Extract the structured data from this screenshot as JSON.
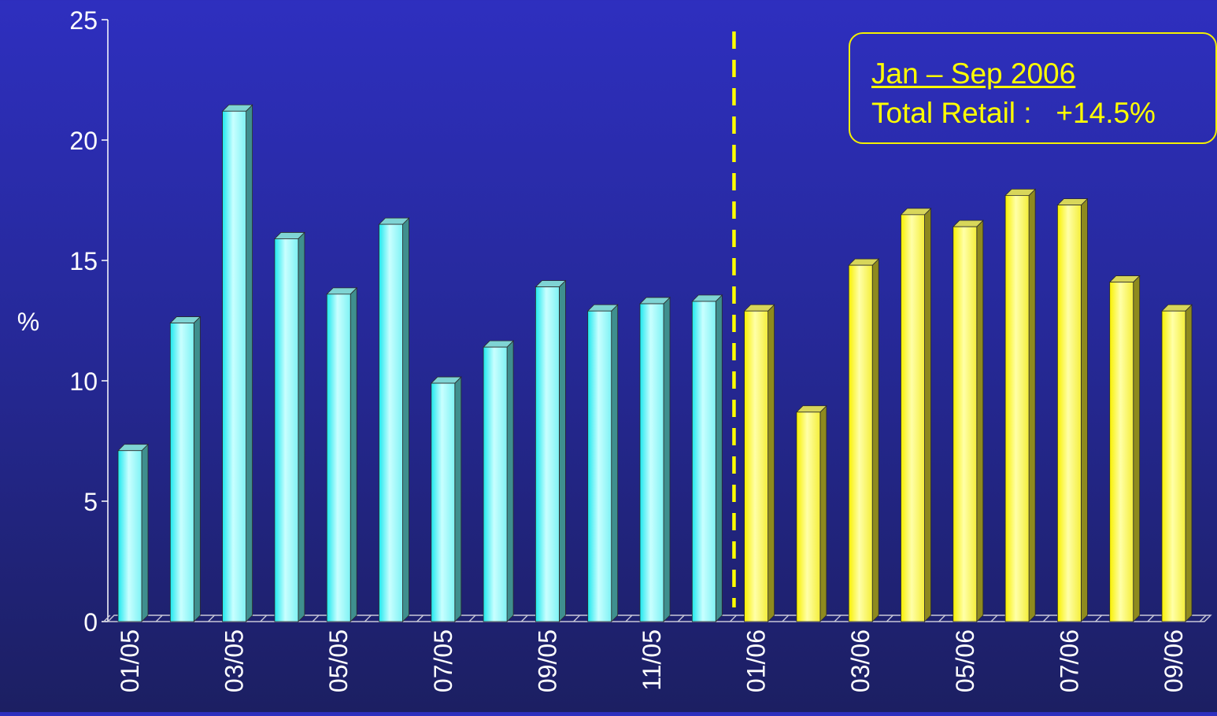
{
  "chart_data": {
    "type": "bar",
    "ylabel": "%",
    "ylim": [
      0,
      25
    ],
    "yticks": [
      "0",
      "5",
      "10",
      "15",
      "20",
      "25"
    ],
    "categories": [
      "01/05",
      "02/05",
      "03/05",
      "04/05",
      "05/05",
      "06/05",
      "07/05",
      "08/05",
      "09/05",
      "10/05",
      "11/05",
      "12/05",
      "01/06",
      "02/06",
      "03/06",
      "04/06",
      "05/06",
      "06/06",
      "07/06",
      "08/06",
      "09/06"
    ],
    "xtick_labels": [
      "01/05",
      "",
      "03/05",
      "",
      "05/05",
      "",
      "07/05",
      "",
      "09/05",
      "",
      "11/05",
      "",
      "01/06",
      "",
      "03/06",
      "",
      "05/06",
      "",
      "07/06",
      "",
      "09/06"
    ],
    "series": [
      {
        "values": [
          7.1,
          12.4,
          21.2,
          15.9,
          13.6,
          16.5,
          9.9,
          11.4,
          13.9,
          12.9,
          13.2,
          13.3,
          12.9,
          8.7,
          14.8,
          16.9,
          16.4,
          17.7,
          17.3,
          14.1,
          12.9
        ]
      }
    ],
    "year_groups": [
      {
        "categories": [
          "01/05",
          "02/05",
          "03/05",
          "04/05",
          "05/05",
          "06/05",
          "07/05",
          "08/05",
          "09/05",
          "10/05",
          "11/05",
          "12/05"
        ],
        "color": "#3ff0f0"
      },
      {
        "categories": [
          "01/06",
          "02/06",
          "03/06",
          "04/06",
          "05/06",
          "06/06",
          "07/06",
          "08/06",
          "09/06"
        ],
        "color": "#ffff30"
      }
    ],
    "divider": {
      "between": [
        "12/05",
        "01/06"
      ],
      "style": "dashed",
      "color": "#ffff00"
    },
    "annotation": {
      "title": "Jan – Sep 2006",
      "text": "Total Retail :   +14.5%",
      "color": "#ffff00"
    }
  }
}
